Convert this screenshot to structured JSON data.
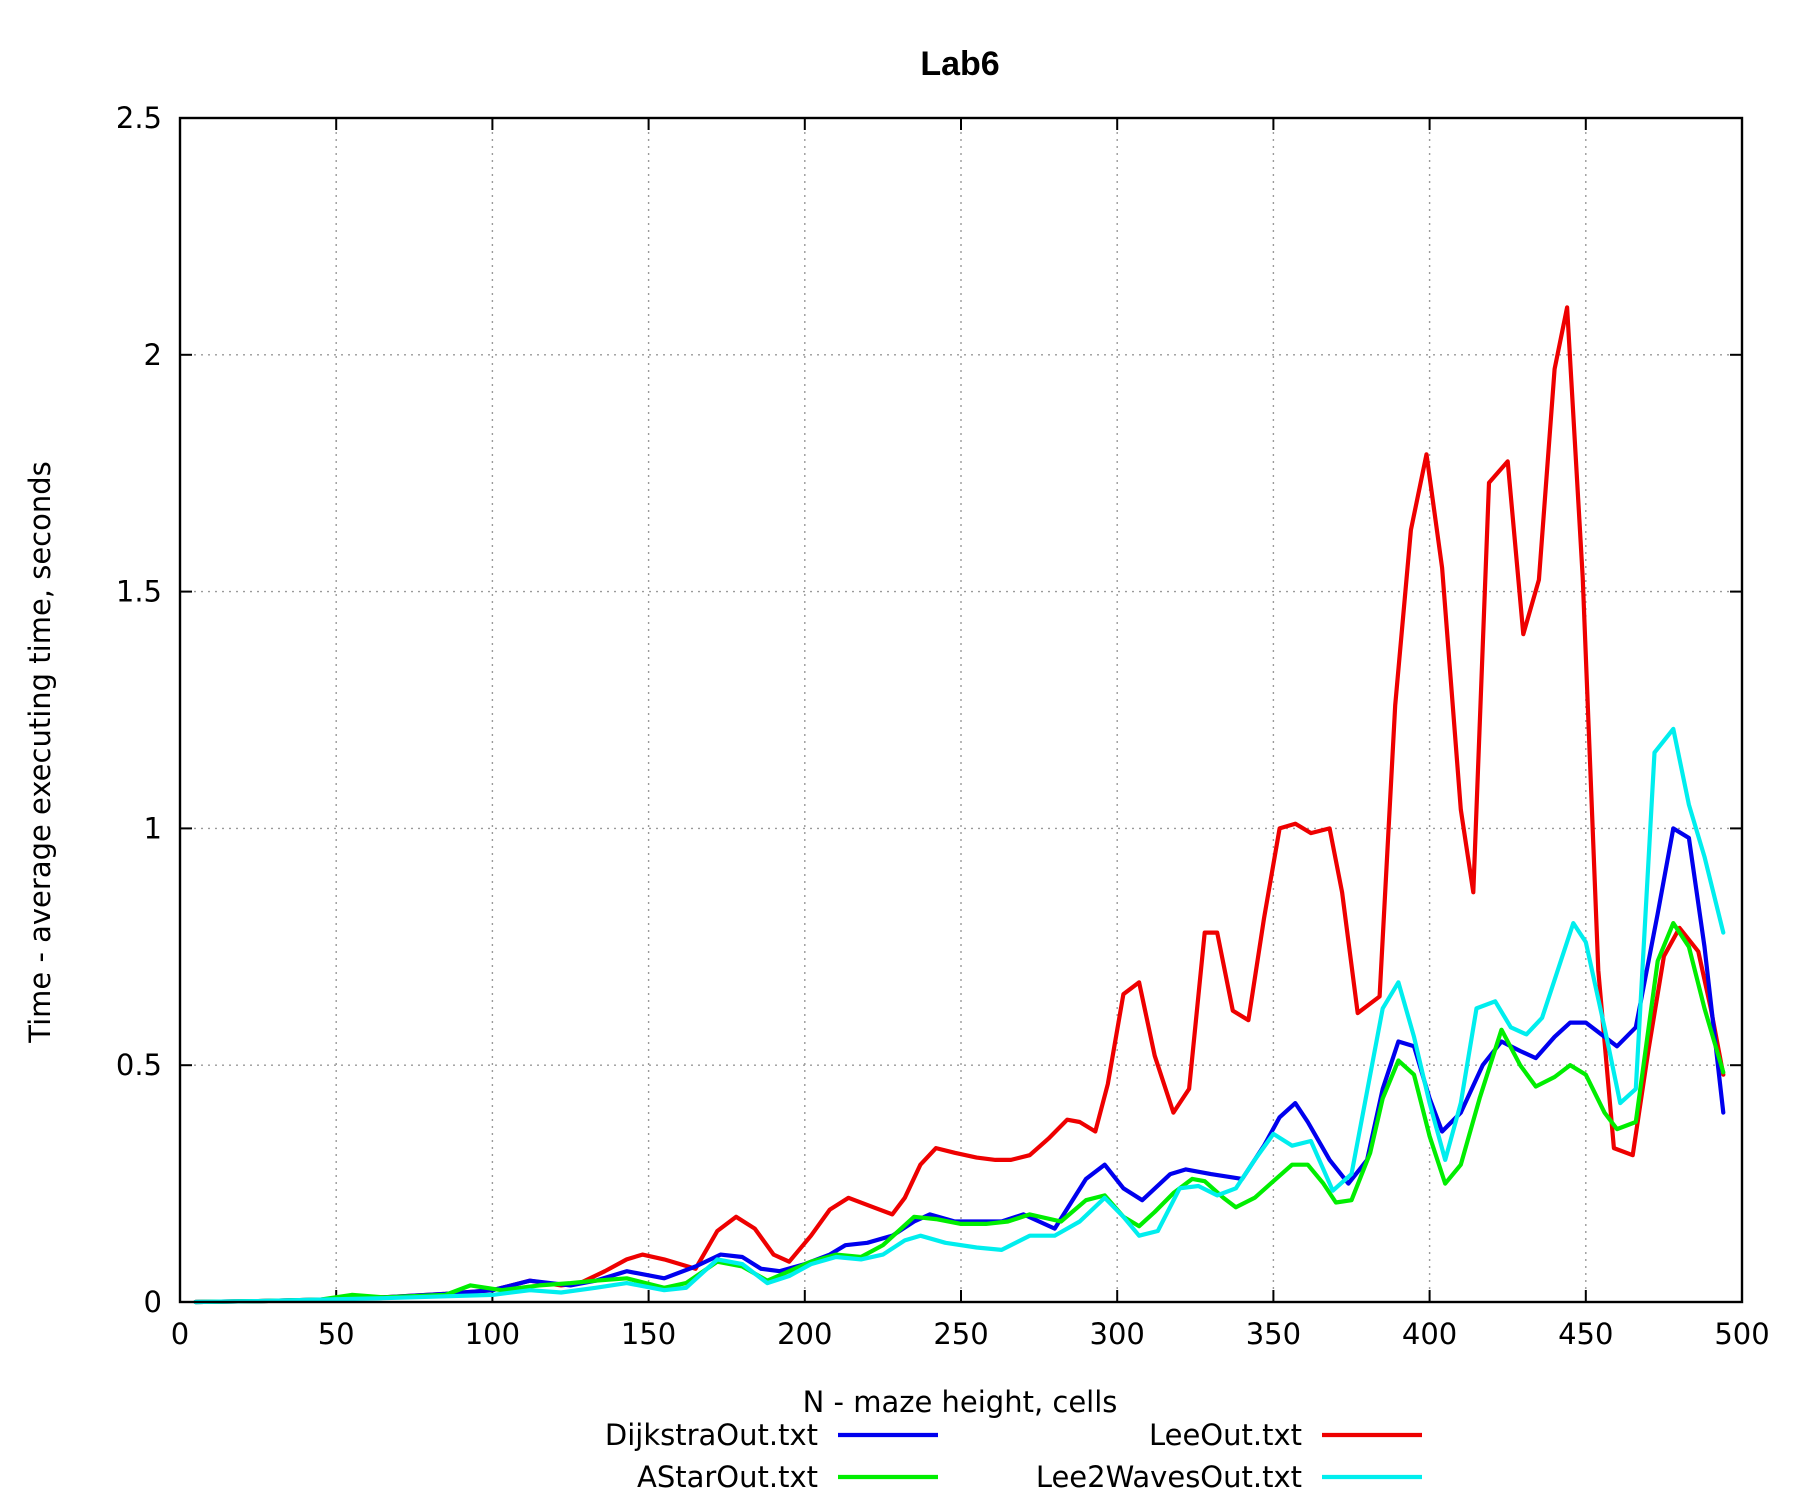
{
  "chart_data": {
    "type": "line",
    "title": "Lab6",
    "xlabel": "N - maze height, cells",
    "ylabel": "Time - average executing time, seconds",
    "xlim": [
      0,
      500
    ],
    "ylim": [
      0,
      2.5
    ],
    "xticks": [
      "0",
      "50",
      "100",
      "150",
      "200",
      "250",
      "300",
      "350",
      "400",
      "450",
      "500"
    ],
    "yticks": [
      "0",
      "0.5",
      "1",
      "1.5",
      "2",
      "2.5"
    ],
    "grid": true,
    "legend_position": "bottom",
    "colors": {
      "dijkstra": "#0000ee",
      "astar": "#00ee00",
      "lee": "#ee0000",
      "lee2waves": "#00eeee"
    },
    "series": [
      {
        "name": "DijkstraOut.txt",
        "key": "dijkstra",
        "x": [
          5,
          25,
          45,
          65,
          85,
          100,
          112,
          125,
          133,
          143,
          155,
          165,
          173,
          180,
          186,
          192,
          200,
          208,
          213,
          220,
          228,
          235,
          240,
          248,
          255,
          263,
          270,
          280,
          290,
          296,
          302,
          308,
          317,
          322,
          330,
          340,
          347,
          352,
          357,
          361,
          368,
          374,
          380,
          385,
          390,
          395,
          400,
          404,
          410,
          417,
          423,
          429,
          434,
          440,
          445,
          450,
          456,
          460,
          466,
          473,
          478,
          483,
          488,
          494
        ],
        "y": [
          0.0,
          0.002,
          0.005,
          0.01,
          0.017,
          0.025,
          0.045,
          0.035,
          0.045,
          0.065,
          0.05,
          0.075,
          0.1,
          0.095,
          0.07,
          0.065,
          0.08,
          0.1,
          0.12,
          0.125,
          0.14,
          0.17,
          0.185,
          0.17,
          0.17,
          0.17,
          0.185,
          0.155,
          0.26,
          0.29,
          0.24,
          0.215,
          0.27,
          0.28,
          0.27,
          0.26,
          0.33,
          0.39,
          0.42,
          0.38,
          0.3,
          0.25,
          0.3,
          0.45,
          0.55,
          0.54,
          0.43,
          0.36,
          0.4,
          0.5,
          0.55,
          0.53,
          0.515,
          0.56,
          0.59,
          0.59,
          0.56,
          0.54,
          0.58,
          0.82,
          1.0,
          0.98,
          0.75,
          0.4
        ]
      },
      {
        "name": "LeeOut.txt",
        "key": "lee",
        "x": [
          5,
          25,
          45,
          65,
          85,
          100,
          112,
          122,
          128,
          136,
          143,
          148,
          155,
          165,
          172,
          178,
          184,
          190,
          195,
          202,
          208,
          214,
          222,
          228,
          232,
          237,
          242,
          248,
          255,
          261,
          266,
          272,
          278,
          284,
          288,
          293,
          297,
          302,
          307,
          312,
          318,
          323,
          328,
          332,
          337,
          342,
          347,
          352,
          357,
          362,
          368,
          372,
          377,
          384,
          389,
          394,
          399,
          404,
          410,
          414,
          419,
          425,
          430,
          435,
          440,
          444,
          449,
          454,
          459,
          465,
          470,
          475,
          480,
          486,
          490,
          494
        ],
        "y": [
          0.0,
          0.002,
          0.005,
          0.01,
          0.017,
          0.025,
          0.045,
          0.035,
          0.04,
          0.065,
          0.09,
          0.1,
          0.09,
          0.07,
          0.15,
          0.18,
          0.155,
          0.1,
          0.085,
          0.14,
          0.195,
          0.22,
          0.2,
          0.185,
          0.22,
          0.29,
          0.325,
          0.315,
          0.305,
          0.3,
          0.3,
          0.31,
          0.345,
          0.385,
          0.38,
          0.36,
          0.46,
          0.65,
          0.675,
          0.52,
          0.4,
          0.45,
          0.78,
          0.78,
          0.615,
          0.595,
          0.81,
          1.0,
          1.01,
          0.99,
          1.0,
          0.865,
          0.61,
          0.645,
          1.26,
          1.63,
          1.79,
          1.55,
          1.04,
          0.865,
          1.73,
          1.775,
          1.41,
          1.525,
          1.97,
          2.1,
          1.53,
          0.7,
          0.325,
          0.31,
          0.53,
          0.73,
          0.79,
          0.74,
          0.62,
          0.48
        ]
      },
      {
        "name": "AStarOut.txt",
        "key": "astar",
        "x": [
          5,
          25,
          45,
          55,
          65,
          85,
          93,
          103,
          115,
          125,
          133,
          143,
          155,
          162,
          172,
          180,
          188,
          195,
          202,
          210,
          218,
          225,
          235,
          242,
          250,
          258,
          265,
          272,
          282,
          290,
          296,
          302,
          307,
          312,
          318,
          324,
          328,
          334,
          338,
          344,
          350,
          356,
          361,
          366,
          370,
          375,
          381,
          385,
          390,
          395,
          400,
          405,
          410,
          416,
          423,
          429,
          434,
          440,
          445,
          450,
          456,
          460,
          466,
          473,
          478,
          483,
          488,
          494
        ],
        "y": [
          0.0,
          0.002,
          0.005,
          0.015,
          0.01,
          0.015,
          0.035,
          0.025,
          0.035,
          0.04,
          0.045,
          0.05,
          0.03,
          0.04,
          0.085,
          0.075,
          0.045,
          0.065,
          0.085,
          0.1,
          0.095,
          0.12,
          0.18,
          0.175,
          0.165,
          0.165,
          0.17,
          0.185,
          0.17,
          0.215,
          0.225,
          0.18,
          0.16,
          0.19,
          0.23,
          0.26,
          0.255,
          0.22,
          0.2,
          0.22,
          0.255,
          0.29,
          0.29,
          0.25,
          0.21,
          0.215,
          0.315,
          0.43,
          0.51,
          0.48,
          0.35,
          0.25,
          0.29,
          0.43,
          0.575,
          0.5,
          0.455,
          0.475,
          0.5,
          0.48,
          0.4,
          0.365,
          0.38,
          0.72,
          0.8,
          0.75,
          0.62,
          0.485
        ]
      },
      {
        "name": "Lee2WavesOut.txt",
        "key": "lee2waves",
        "x": [
          5,
          25,
          45,
          65,
          85,
          100,
          112,
          122,
          133,
          143,
          155,
          162,
          172,
          180,
          188,
          195,
          202,
          210,
          218,
          225,
          232,
          237,
          245,
          255,
          263,
          272,
          280,
          288,
          296,
          302,
          307,
          313,
          320,
          326,
          332,
          338,
          344,
          350,
          356,
          362,
          369,
          375,
          385,
          390,
          395,
          400,
          405,
          410,
          415,
          421,
          426,
          431,
          436,
          442,
          446,
          450,
          456,
          461,
          466,
          472,
          478,
          483,
          488,
          494
        ],
        "y": [
          0.0,
          0.002,
          0.005,
          0.008,
          0.012,
          0.015,
          0.025,
          0.02,
          0.03,
          0.04,
          0.025,
          0.03,
          0.09,
          0.08,
          0.04,
          0.055,
          0.08,
          0.095,
          0.09,
          0.1,
          0.13,
          0.14,
          0.125,
          0.115,
          0.11,
          0.14,
          0.14,
          0.17,
          0.22,
          0.18,
          0.14,
          0.15,
          0.24,
          0.245,
          0.225,
          0.24,
          0.3,
          0.355,
          0.33,
          0.34,
          0.235,
          0.27,
          0.62,
          0.675,
          0.56,
          0.42,
          0.3,
          0.42,
          0.62,
          0.635,
          0.58,
          0.565,
          0.6,
          0.72,
          0.8,
          0.76,
          0.58,
          0.42,
          0.45,
          1.16,
          1.21,
          1.05,
          0.94,
          0.78
        ]
      }
    ]
  }
}
